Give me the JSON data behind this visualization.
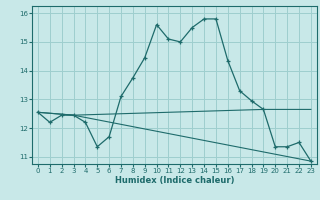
{
  "xlabel": "Humidex (Indice chaleur)",
  "ylabel": "",
  "background_color": "#c8e8e8",
  "grid_color": "#9ecece",
  "line_color": "#1e6b6b",
  "xlim": [
    -0.5,
    23.5
  ],
  "ylim": [
    10.75,
    16.25
  ],
  "xticks": [
    0,
    1,
    2,
    3,
    4,
    5,
    6,
    7,
    8,
    9,
    10,
    11,
    12,
    13,
    14,
    15,
    16,
    17,
    18,
    19,
    20,
    21,
    22,
    23
  ],
  "yticks": [
    11,
    12,
    13,
    14,
    15,
    16
  ],
  "series1_x": [
    0,
    1,
    2,
    3,
    4,
    5,
    6,
    7,
    8,
    9,
    10,
    11,
    12,
    13,
    14,
    15,
    16,
    17,
    18,
    19,
    20,
    21,
    22,
    23
  ],
  "series1_y": [
    12.55,
    12.2,
    12.45,
    12.45,
    12.2,
    11.35,
    11.7,
    13.1,
    13.75,
    14.45,
    15.6,
    15.1,
    15.0,
    15.5,
    15.8,
    15.8,
    14.35,
    13.3,
    12.95,
    12.65,
    11.35,
    11.35,
    11.5,
    10.85
  ],
  "series2_x": [
    0,
    3,
    19,
    23
  ],
  "series2_y": [
    12.55,
    12.45,
    12.65,
    12.65
  ],
  "series3_x": [
    0,
    3,
    23
  ],
  "series3_y": [
    12.55,
    12.45,
    10.85
  ]
}
